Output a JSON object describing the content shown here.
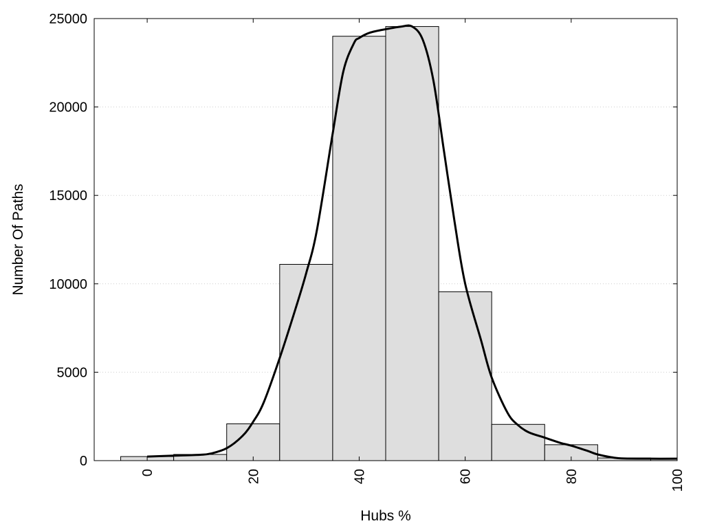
{
  "chart_data": {
    "type": "bar",
    "title": "",
    "xlabel": "Hubs %",
    "ylabel": "Number Of Paths",
    "xlim": [
      -10,
      100
    ],
    "ylim": [
      0,
      25000
    ],
    "grid": {
      "y": true,
      "x": false,
      "style": "dotted"
    },
    "legend": "none",
    "x_ticks": [
      0,
      20,
      40,
      60,
      80,
      100
    ],
    "y_ticks": [
      0,
      5000,
      10000,
      15000,
      20000,
      25000
    ],
    "bin_width": 10,
    "bars": [
      {
        "x": 0,
        "value": 230
      },
      {
        "x": 10,
        "value": 350
      },
      {
        "x": 20,
        "value": 2080
      },
      {
        "x": 30,
        "value": 11100
      },
      {
        "x": 40,
        "value": 24000
      },
      {
        "x": 50,
        "value": 24550
      },
      {
        "x": 60,
        "value": 9550
      },
      {
        "x": 70,
        "value": 2050
      },
      {
        "x": 80,
        "value": 900
      },
      {
        "x": 90,
        "value": 150
      },
      {
        "x": 100,
        "value": 130
      }
    ],
    "curve": {
      "x": [
        0,
        5,
        10,
        12,
        15,
        18,
        20,
        22,
        25,
        28,
        30,
        32,
        35,
        37,
        39,
        40,
        42,
        45,
        48,
        50,
        52,
        54,
        56,
        58,
        60,
        63,
        65,
        68,
        70,
        72,
        75,
        78,
        80,
        83,
        85,
        88,
        90,
        95,
        100
      ],
      "y": [
        230,
        280,
        330,
        400,
        700,
        1400,
        2200,
        3300,
        5800,
        8600,
        10600,
        13000,
        18500,
        22000,
        23600,
        23900,
        24200,
        24400,
        24550,
        24550,
        23800,
        21500,
        17500,
        13500,
        10000,
        6800,
        4700,
        2700,
        2000,
        1600,
        1300,
        1000,
        850,
        560,
        350,
        170,
        120,
        110,
        110
      ]
    },
    "colors": {
      "bar_fill": "#dedede",
      "bar_stroke": "#000000",
      "line": "#000000",
      "grid": "#cccccc"
    }
  }
}
